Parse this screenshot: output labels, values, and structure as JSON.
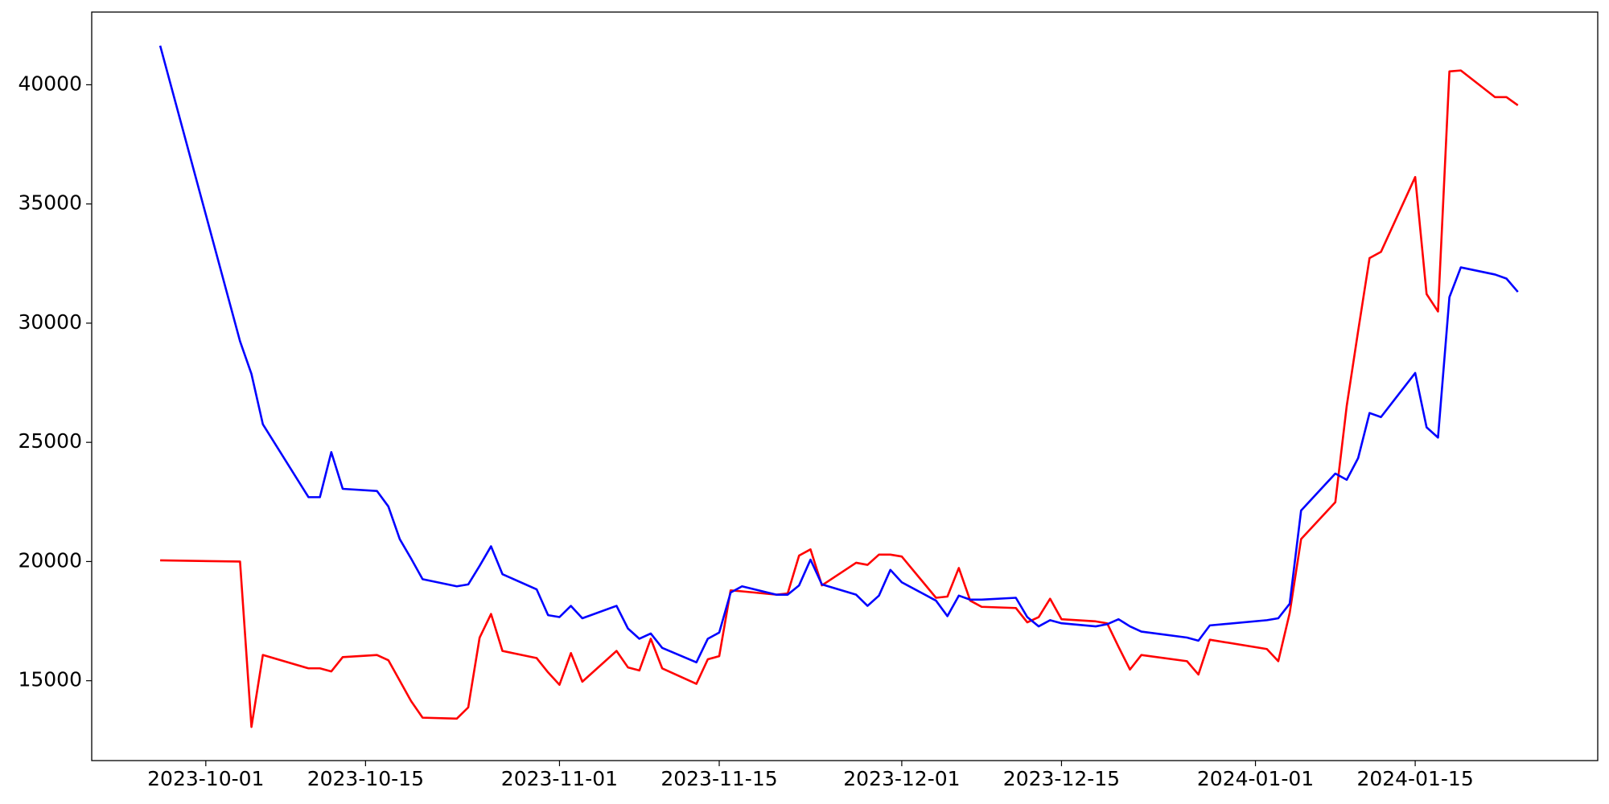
{
  "chart_data": {
    "type": "line",
    "x": [
      "2023-09-27",
      "2023-10-04",
      "2023-10-05",
      "2023-10-06",
      "2023-10-10",
      "2023-10-11",
      "2023-10-12",
      "2023-10-13",
      "2023-10-16",
      "2023-10-17",
      "2023-10-18",
      "2023-10-19",
      "2023-10-20",
      "2023-10-23",
      "2023-10-24",
      "2023-10-25",
      "2023-10-26",
      "2023-10-27",
      "2023-10-30",
      "2023-10-31",
      "2023-11-01",
      "2023-11-02",
      "2023-11-03",
      "2023-11-06",
      "2023-11-07",
      "2023-11-08",
      "2023-11-09",
      "2023-11-10",
      "2023-11-13",
      "2023-11-14",
      "2023-11-15",
      "2023-11-16",
      "2023-11-17",
      "2023-11-20",
      "2023-11-21",
      "2023-11-22",
      "2023-11-23",
      "2023-11-24",
      "2023-11-27",
      "2023-11-28",
      "2023-11-29",
      "2023-11-30",
      "2023-12-01",
      "2023-12-04",
      "2023-12-05",
      "2023-12-06",
      "2023-12-07",
      "2023-12-08",
      "2023-12-11",
      "2023-12-12",
      "2023-12-13",
      "2023-12-14",
      "2023-12-15",
      "2023-12-18",
      "2023-12-19",
      "2023-12-20",
      "2023-12-21",
      "2023-12-22",
      "2023-12-26",
      "2023-12-27",
      "2023-12-28",
      "2024-01-02",
      "2024-01-03",
      "2024-01-04",
      "2024-01-05",
      "2024-01-08",
      "2024-01-09",
      "2024-01-10",
      "2024-01-11",
      "2024-01-12",
      "2024-01-15",
      "2024-01-16",
      "2024-01-17",
      "2024-01-18",
      "2024-01-19",
      "2024-01-22",
      "2024-01-23",
      "2024-01-24"
    ],
    "series": [
      {
        "color": "#ff0000",
        "values": [
          20050,
          20000,
          13060,
          16080,
          15520,
          15520,
          15390,
          15990,
          16080,
          15860,
          15000,
          14140,
          13450,
          13410,
          13880,
          16810,
          17800,
          16250,
          15950,
          15350,
          14830,
          16160,
          14960,
          16250,
          15560,
          15430,
          16760,
          15520,
          14870,
          15900,
          16030,
          18790,
          18750,
          18610,
          18660,
          20250,
          20510,
          19000,
          19950,
          19860,
          20290,
          20290,
          20210,
          18480,
          18530,
          19730,
          18360,
          18100,
          18050,
          17450,
          17670,
          18440,
          17580,
          17490,
          17410,
          16420,
          15470,
          16080,
          15820,
          15260,
          16720,
          16330,
          15820,
          17840,
          20940,
          22490,
          26530,
          29670,
          32730,
          32990,
          36130,
          31220,
          30490,
          40560,
          40600,
          39480,
          39480,
          39140
        ]
      },
      {
        "color": "#0000ff",
        "values": [
          41640,
          29240,
          27870,
          25760,
          22700,
          22700,
          24590,
          23050,
          22960,
          22310,
          20940,
          20120,
          19260,
          18960,
          19040,
          19820,
          20640,
          19470,
          18830,
          17750,
          17670,
          18140,
          17620,
          18140,
          17190,
          16760,
          16980,
          16380,
          15770,
          16760,
          17020,
          18700,
          18960,
          18610,
          18610,
          19000,
          20080,
          19040,
          18610,
          18140,
          18570,
          19650,
          19130,
          18360,
          17710,
          18570,
          18400,
          18400,
          18480,
          17670,
          17280,
          17540,
          17410,
          17280,
          17370,
          17580,
          17280,
          17060,
          16810,
          16680,
          17320,
          17540,
          17620,
          18230,
          22140,
          23690,
          23430,
          24340,
          26230,
          26060,
          27910,
          25630,
          25200,
          31090,
          32340,
          32040,
          31870,
          31310
        ]
      }
    ],
    "xlim": [
      "2023-09-21",
      "2024-01-31"
    ],
    "xticks": [
      "2023-10-01",
      "2023-10-15",
      "2023-11-01",
      "2023-11-15",
      "2023-12-01",
      "2023-12-15",
      "2024-01-01",
      "2024-01-15"
    ],
    "ylim": [
      11650,
      43050
    ],
    "yticks": [
      15000,
      20000,
      25000,
      30000,
      35000,
      40000
    ],
    "grid": false
  }
}
